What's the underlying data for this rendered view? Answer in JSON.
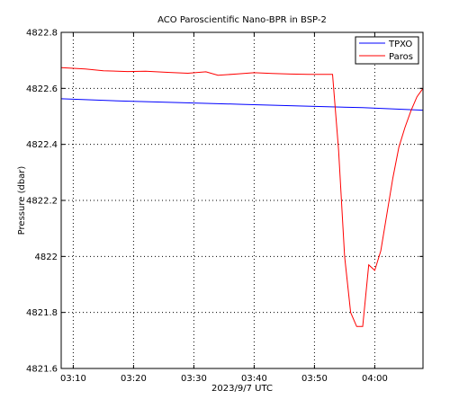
{
  "chart_data": {
    "type": "line",
    "title": "ACO Paroscientific Nano-BPR in BSP-2",
    "xlabel": "2023/9/7 UTC",
    "ylabel": "Pressure (dbar)",
    "xlim": [
      "2023-09-07 03:08",
      "2023-09-07 04:08"
    ],
    "ylim": [
      4821.6,
      4822.8
    ],
    "x_ticks": [
      "03:10",
      "03:20",
      "03:30",
      "03:40",
      "03:50",
      "04:00"
    ],
    "y_ticks": [
      "4821.6",
      "4821.8",
      "4822",
      "4822.2",
      "4822.4",
      "4822.6",
      "4822.8"
    ],
    "grid": true,
    "legend_position": "top-right",
    "series": [
      {
        "name": "TPXO",
        "color": "#0000ff",
        "x": [
          "2023-09-07 03:08",
          "2023-09-07 03:18",
          "2023-09-07 03:28",
          "2023-09-07 03:38",
          "2023-09-07 03:48",
          "2023-09-07 03:58",
          "2023-09-07 04:08"
        ],
        "y": [
          4822.563,
          4822.555,
          4822.549,
          4822.543,
          4822.537,
          4822.531,
          4822.522
        ]
      },
      {
        "name": "Paros",
        "color": "#ff0000",
        "x": [
          "2023-09-07 03:08",
          "2023-09-07 03:12",
          "2023-09-07 03:15",
          "2023-09-07 03:19",
          "2023-09-07 03:22",
          "2023-09-07 03:26",
          "2023-09-07 03:29",
          "2023-09-07 03:32",
          "2023-09-07 03:34",
          "2023-09-07 03:37",
          "2023-09-07 03:40",
          "2023-09-07 03:43",
          "2023-09-07 03:46",
          "2023-09-07 03:49",
          "2023-09-07 03:52",
          "2023-09-07 03:53",
          "2023-09-07 03:54",
          "2023-09-07 03:55",
          "2023-09-07 03:56",
          "2023-09-07 03:57",
          "2023-09-07 03:58",
          "2023-09-07 03:59",
          "2023-09-07 04:00",
          "2023-09-07 04:01",
          "2023-09-07 04:02",
          "2023-09-07 04:03",
          "2023-09-07 04:04",
          "2023-09-07 04:05",
          "2023-09-07 04:06",
          "2023-09-07 04:07",
          "2023-09-07 04:08"
        ],
        "y": [
          4822.674,
          4822.669,
          4822.663,
          4822.66,
          4822.661,
          4822.657,
          4822.654,
          4822.659,
          4822.647,
          4822.651,
          4822.656,
          4822.653,
          4822.651,
          4822.65,
          4822.65,
          4822.65,
          4822.38,
          4822.0,
          4821.8,
          4821.75,
          4821.75,
          4821.97,
          4821.95,
          4822.02,
          4822.15,
          4822.28,
          4822.39,
          4822.46,
          4822.52,
          4822.57,
          4822.6
        ]
      }
    ]
  }
}
